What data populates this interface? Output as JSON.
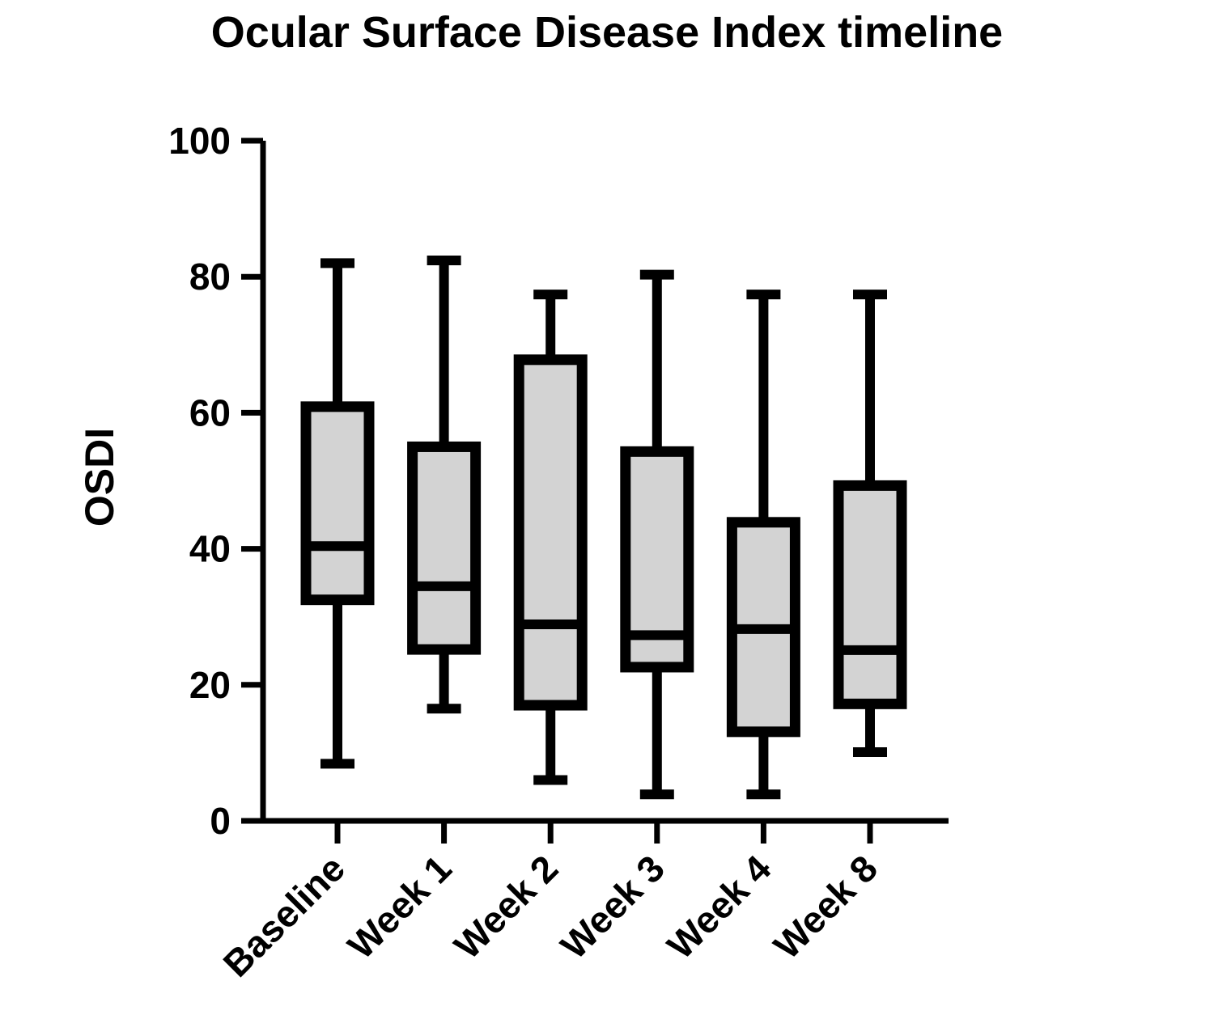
{
  "chart_data": {
    "type": "box",
    "title": "Ocular Surface Disease Index timeline",
    "xlabel": "",
    "ylabel": "OSDI",
    "ylim": [
      0,
      100
    ],
    "yticks": [
      0,
      20,
      40,
      60,
      80,
      100
    ],
    "grid": false,
    "categories": [
      "Baseline",
      "Week 1",
      "Week 2",
      "Week 3",
      "Week 4",
      "Week 8"
    ],
    "boxes": [
      {
        "min": 8.4,
        "q1": 32.5,
        "median": 40.4,
        "q3": 60.9,
        "max": 82.0
      },
      {
        "min": 16.5,
        "q1": 25.2,
        "median": 34.5,
        "q3": 55.0,
        "max": 82.4
      },
      {
        "min": 6.0,
        "q1": 17.0,
        "median": 28.9,
        "q3": 67.8,
        "max": 77.4
      },
      {
        "min": 3.9,
        "q1": 22.6,
        "median": 27.3,
        "q3": 54.3,
        "max": 80.3
      },
      {
        "min": 3.9,
        "q1": 13.1,
        "median": 28.2,
        "q3": 43.9,
        "max": 77.4
      },
      {
        "min": 10.1,
        "q1": 17.2,
        "median": 25.1,
        "q3": 49.3,
        "max": 77.4
      }
    ],
    "colors": {
      "box_fill": "#d3d3d3",
      "stroke": "#000000"
    }
  }
}
